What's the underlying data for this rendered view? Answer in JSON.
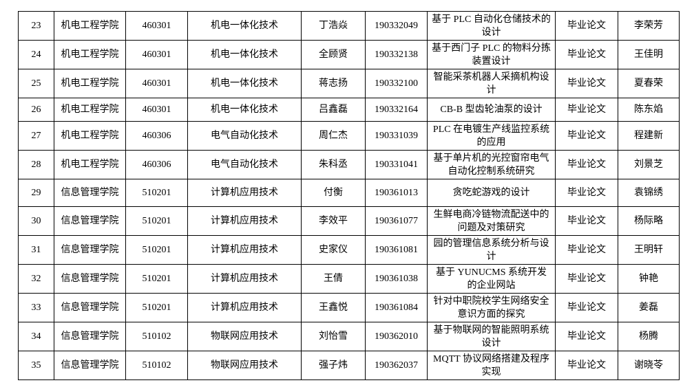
{
  "rows": [
    {
      "no": "23",
      "college": "机电工程学院",
      "code": "460301",
      "major": "机电一体化技术",
      "student": "丁浩焱",
      "id": "190332049",
      "title": "基于 PLC 自动化仓储技术的设计",
      "type": "毕业论文",
      "advisor": "李荣芳"
    },
    {
      "no": "24",
      "college": "机电工程学院",
      "code": "460301",
      "major": "机电一体化技术",
      "student": "全顾贤",
      "id": "190332138",
      "title": "基于西门子 PLC 的物料分拣装置设计",
      "type": "毕业论文",
      "advisor": "王佳明"
    },
    {
      "no": "25",
      "college": "机电工程学院",
      "code": "460301",
      "major": "机电一体化技术",
      "student": "蒋志扬",
      "id": "190332100",
      "title": "智能采茶机器人采摘机构设计",
      "type": "毕业论文",
      "advisor": "夏春荣"
    },
    {
      "no": "26",
      "college": "机电工程学院",
      "code": "460301",
      "major": "机电一体化技术",
      "student": "吕鑫磊",
      "id": "190332164",
      "title": "CB-B 型齿轮油泵的设计",
      "type": "毕业论文",
      "advisor": "陈东焰"
    },
    {
      "no": "27",
      "college": "机电工程学院",
      "code": "460306",
      "major": "电气自动化技术",
      "student": "周仁杰",
      "id": "190331039",
      "title": "PLC 在电镀生产线监控系统的应用",
      "type": "毕业论文",
      "advisor": "程建新"
    },
    {
      "no": "28",
      "college": "机电工程学院",
      "code": "460306",
      "major": "电气自动化技术",
      "student": "朱科丞",
      "id": "190331041",
      "title": "基于单片机的光控窗帘电气自动化控制系统研究",
      "type": "毕业论文",
      "advisor": "刘景芝"
    },
    {
      "no": "29",
      "college": "信息管理学院",
      "code": "510201",
      "major": "计算机应用技术",
      "student": "付衡",
      "id": "190361013",
      "title": "贪吃蛇游戏的设计",
      "type": "毕业论文",
      "advisor": "袁锦绣"
    },
    {
      "no": "30",
      "college": "信息管理学院",
      "code": "510201",
      "major": "计算机应用技术",
      "student": "李效平",
      "id": "190361077",
      "title": "生鲜电商冷链物流配送中的问题及对策研究",
      "type": "毕业论文",
      "advisor": "杨际略"
    },
    {
      "no": "31",
      "college": "信息管理学院",
      "code": "510201",
      "major": "计算机应用技术",
      "student": "史家仪",
      "id": "190361081",
      "title": "园的管理信息系统分析与设计",
      "type": "毕业论文",
      "advisor": "王明轩"
    },
    {
      "no": "32",
      "college": "信息管理学院",
      "code": "510201",
      "major": "计算机应用技术",
      "student": "王倩",
      "id": "190361038",
      "title": "基于 YUNUCMS 系统开发的企业网站",
      "type": "毕业论文",
      "advisor": "钟艳"
    },
    {
      "no": "33",
      "college": "信息管理学院",
      "code": "510201",
      "major": "计算机应用技术",
      "student": "王鑫悦",
      "id": "190361084",
      "title": "针对中职院校学生网络安全意识方面的探究",
      "type": "毕业论文",
      "advisor": "姜磊"
    },
    {
      "no": "34",
      "college": "信息管理学院",
      "code": "510102",
      "major": "物联网应用技术",
      "student": "刘怡雪",
      "id": "190362010",
      "title": "基于物联网的智能照明系统设计",
      "type": "毕业论文",
      "advisor": "杨腾"
    },
    {
      "no": "35",
      "college": "信息管理学院",
      "code": "510102",
      "major": "物联网应用技术",
      "student": "强子炜",
      "id": "190362037",
      "title": "MQTT 协议网络搭建及程序实现",
      "type": "毕业论文",
      "advisor": "谢晓苓"
    }
  ]
}
